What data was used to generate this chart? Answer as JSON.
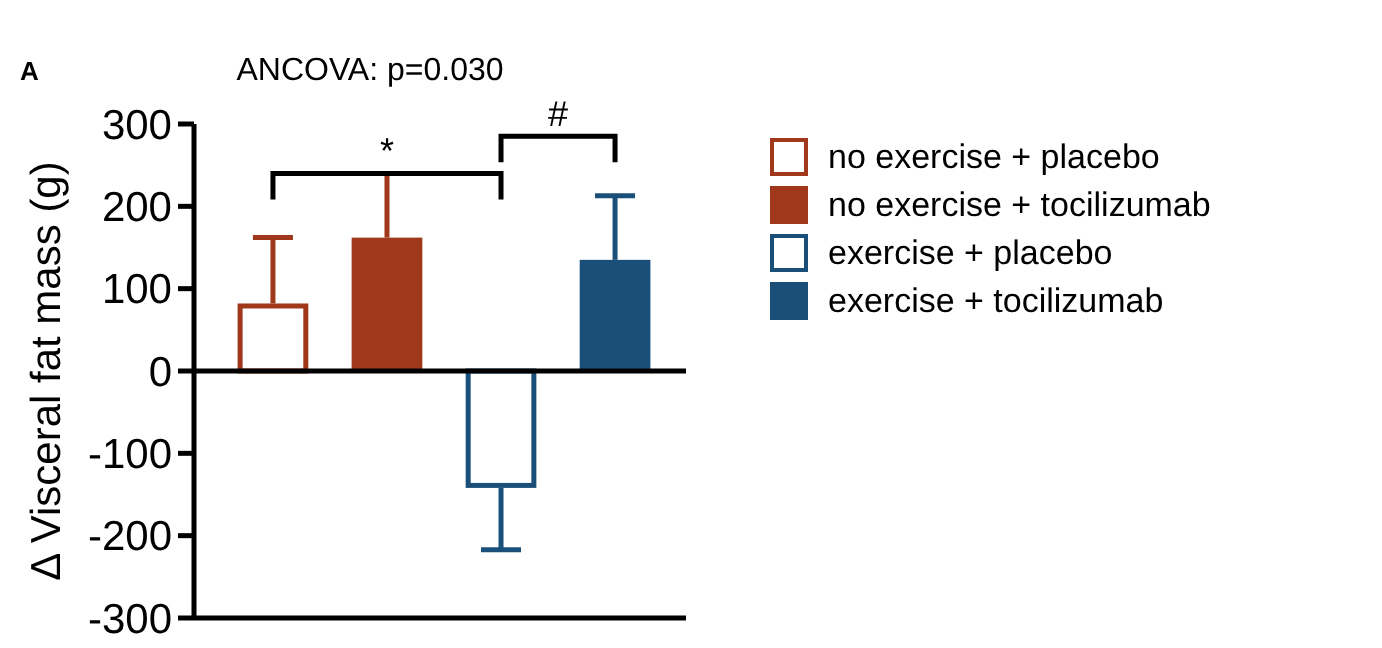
{
  "chart_data": {
    "type": "bar",
    "ylabel": "Δ Visceral fat mass (g)",
    "categories": [
      null
    ],
    "annotations": [
      "A",
      "ANCOVA: p=0.030",
      "*",
      "#"
    ],
    "series": [
      {
        "name": "no exercise + placebo",
        "color": "#a0391c",
        "values": [
          82
        ],
        "errors": [
          [
            82,
            162
          ]
        ]
      },
      {
        "name": "no exercise + tocilizumab",
        "color": "#a0391c",
        "values": [
          162
        ],
        "errors": [
          [
            162,
            240
          ]
        ]
      },
      {
        "name": "exercise + placebo",
        "color": "#1a4f7a",
        "values": [
          -142
        ],
        "errors": [
          [
            -217,
            -142
          ]
        ]
      },
      {
        "name": "exercise + tocilizumab",
        "color": "#1a4f7a",
        "values": [
          135
        ],
        "errors": [
          [
            135,
            213
          ]
        ]
      }
    ],
    "ylim": [
      -300,
      300
    ],
    "yticks": [
      -300,
      -200,
      -100,
      0,
      100,
      200,
      300
    ],
    "legend": "right"
  }
}
